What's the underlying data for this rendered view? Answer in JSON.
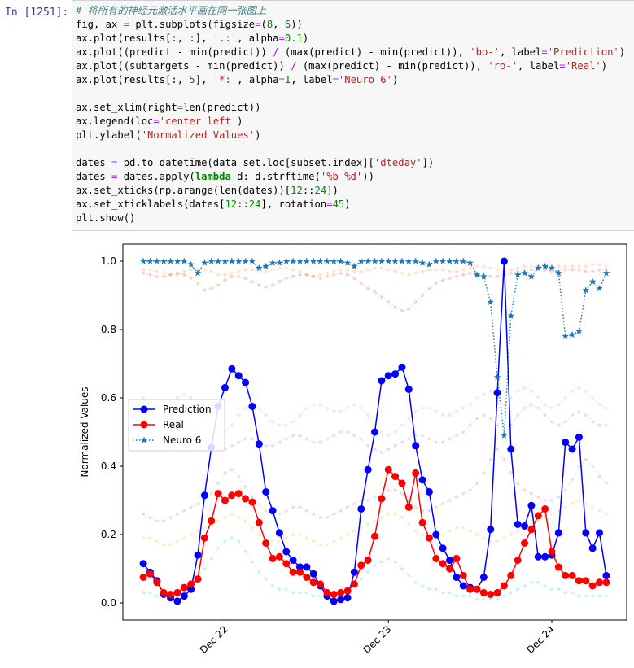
{
  "cell": {
    "prompt": "In  [1251]:",
    "code_lines": [
      "# 将所有的神经元激活水平画在同一张图上",
      "fig, ax = plt.subplots(figsize=(8, 6))",
      "ax.plot(results[:, :], '.:', alpha=0.1)",
      "ax.plot((predict - min(predict)) / (max(predict) - min(predict)), 'bo-', label='Prediction')",
      "ax.plot((subtargets - min(predict)) / (max(predict) - min(predict)), 'ro-', label='Real')",
      "ax.plot(results[:, 5], '*:', alpha=1, label='Neuro 6')",
      "",
      "ax.set_xlim(right=len(predict))",
      "ax.legend(loc='center left')",
      "plt.ylabel('Normalized Values')",
      "",
      "dates = pd.to_datetime(data_set.loc[subset.index]['dteday'])",
      "dates = dates.apply(lambda d: d.strftime('%b %d'))",
      "ax.set_xticks(np.arange(len(dates))[12::24])",
      "ax.set_xticklabels(dates[12::24], rotation=45)",
      "plt.show()"
    ]
  },
  "chart_data": {
    "type": "line",
    "xlabel": "",
    "ylabel": "Normalized Values",
    "xlim": [
      -3,
      71
    ],
    "ylim": [
      -0.05,
      1.05
    ],
    "yticks": [
      0.0,
      0.2,
      0.4,
      0.6,
      0.8,
      1.0
    ],
    "ytick_labels": [
      "0.0",
      "0.2",
      "0.4",
      "0.6",
      "0.8",
      "1.0"
    ],
    "xticks": [
      12,
      36,
      60
    ],
    "xtick_labels": [
      "Dec 22",
      "Dec 23",
      "Dec 24"
    ],
    "legend": {
      "placement": "center-left"
    },
    "colors": {
      "prediction": "#0000ff",
      "real": "#ff0000",
      "neuro6": "#1f77b4"
    },
    "series": [
      {
        "name": "Prediction",
        "style": "bo-",
        "values": [
          0.115,
          0.09,
          0.065,
          0.025,
          0.015,
          0.005,
          0.02,
          0.04,
          0.14,
          0.315,
          0.455,
          0.575,
          0.63,
          0.685,
          0.665,
          0.645,
          0.575,
          0.465,
          0.325,
          0.27,
          0.205,
          0.15,
          0.125,
          0.105,
          0.105,
          0.085,
          0.05,
          0.02,
          0.005,
          0.01,
          0.015,
          0.09,
          0.275,
          0.39,
          0.5,
          0.65,
          0.665,
          0.67,
          0.69,
          0.625,
          0.46,
          0.36,
          0.325,
          0.2,
          0.16,
          0.125,
          0.075,
          0.05,
          0.045,
          0.04,
          0.075,
          0.215,
          0.615,
          1.0,
          0.45,
          0.23,
          0.225,
          0.285,
          0.135,
          0.135,
          0.14,
          0.205,
          0.47,
          0.45,
          0.485,
          0.205,
          0.16,
          0.205,
          0.08
        ]
      },
      {
        "name": "Real",
        "style": "ro-",
        "values": [
          0.075,
          0.085,
          0.06,
          0.03,
          0.025,
          0.03,
          0.045,
          0.055,
          0.07,
          0.19,
          0.24,
          0.32,
          0.3,
          0.315,
          0.32,
          0.305,
          0.295,
          0.235,
          0.175,
          0.13,
          0.135,
          0.115,
          0.09,
          0.09,
          0.075,
          0.06,
          0.055,
          0.03,
          0.025,
          0.03,
          0.035,
          0.055,
          0.11,
          0.125,
          0.195,
          0.305,
          0.39,
          0.37,
          0.35,
          0.28,
          0.38,
          0.235,
          0.19,
          0.13,
          0.115,
          0.1,
          0.13,
          0.08,
          0.04,
          0.04,
          0.03,
          0.025,
          0.03,
          0.05,
          0.08,
          0.125,
          0.175,
          0.215,
          0.255,
          0.275,
          0.15,
          0.105,
          0.08,
          0.08,
          0.065,
          0.065,
          0.05,
          0.06,
          0.06
        ]
      },
      {
        "name": "Neuro 6",
        "style": "*:",
        "values": [
          1.0,
          1.0,
          1.0,
          1.0,
          1.0,
          1.0,
          1.0,
          0.99,
          0.965,
          0.995,
          1.0,
          1.0,
          1.0,
          1.0,
          1.0,
          1.0,
          1.0,
          0.98,
          0.985,
          0.995,
          0.995,
          1.0,
          1.0,
          1.0,
          1.0,
          1.0,
          1.0,
          1.0,
          1.0,
          1.0,
          0.995,
          0.985,
          1.0,
          1.0,
          1.0,
          1.0,
          1.0,
          1.0,
          1.0,
          1.0,
          1.0,
          0.995,
          0.99,
          1.0,
          1.0,
          1.0,
          1.0,
          1.0,
          0.995,
          0.96,
          0.955,
          0.88,
          0.66,
          0.49,
          0.84,
          0.96,
          0.965,
          0.955,
          0.98,
          0.985,
          0.98,
          0.965,
          0.78,
          0.785,
          0.795,
          0.915,
          0.94,
          0.92,
          0.965
        ]
      }
    ],
    "faint_series": [
      [
        0.975,
        0.975,
        0.97,
        0.965,
        0.96,
        0.96,
        0.97,
        0.975,
        0.975,
        0.975,
        0.97,
        0.96,
        0.96,
        0.965,
        0.97,
        0.975,
        0.975,
        0.97,
        0.97,
        0.975,
        0.98,
        0.98,
        0.975,
        0.97,
        0.96,
        0.955,
        0.96,
        0.965,
        0.97,
        0.975,
        0.975,
        0.97,
        0.97,
        0.975,
        0.98,
        0.98,
        0.975,
        0.97,
        0.965,
        0.96,
        0.965,
        0.97,
        0.975,
        0.975,
        0.975,
        0.97,
        0.97,
        0.975,
        0.98,
        0.985,
        0.985,
        0.98,
        0.975,
        0.97,
        0.975,
        0.98,
        0.985,
        0.985,
        0.985,
        0.98,
        0.98,
        0.985,
        0.985,
        0.985,
        0.985,
        0.985,
        0.99,
        0.99,
        0.985
      ],
      [
        0.965,
        0.96,
        0.955,
        0.955,
        0.96,
        0.965,
        0.96,
        0.95,
        0.935,
        0.915,
        0.92,
        0.93,
        0.945,
        0.955,
        0.955,
        0.95,
        0.94,
        0.93,
        0.925,
        0.93,
        0.94,
        0.95,
        0.955,
        0.96,
        0.96,
        0.955,
        0.95,
        0.955,
        0.96,
        0.965,
        0.96,
        0.95,
        0.935,
        0.92,
        0.91,
        0.895,
        0.88,
        0.865,
        0.855,
        0.86,
        0.88,
        0.9,
        0.92,
        0.935,
        0.945,
        0.95,
        0.955,
        0.96,
        0.965,
        0.965,
        0.96,
        0.955,
        0.955,
        0.96,
        0.965,
        0.97,
        0.97,
        0.975,
        0.975,
        0.975,
        0.97,
        0.97,
        0.975,
        0.975,
        0.975,
        0.97,
        0.97,
        0.975,
        0.975
      ],
      [
        0.6,
        0.59,
        0.58,
        0.58,
        0.59,
        0.6,
        0.61,
        0.6,
        0.58,
        0.55,
        0.52,
        0.5,
        0.5,
        0.52,
        0.55,
        0.57,
        0.58,
        0.57,
        0.55,
        0.53,
        0.52,
        0.52,
        0.53,
        0.55,
        0.57,
        0.58,
        0.58,
        0.57,
        0.56,
        0.56,
        0.57,
        0.58,
        0.57,
        0.55,
        0.52,
        0.5,
        0.49,
        0.5,
        0.52,
        0.54,
        0.56,
        0.57,
        0.57,
        0.56,
        0.55,
        0.55,
        0.56,
        0.57,
        0.58,
        0.6,
        0.61,
        0.62,
        0.6,
        0.58,
        0.6,
        0.62,
        0.63,
        0.62,
        0.6,
        0.58,
        0.57,
        0.58,
        0.6,
        0.62,
        0.63,
        0.62,
        0.6,
        0.58,
        0.57
      ],
      [
        0.5,
        0.5,
        0.49,
        0.48,
        0.48,
        0.49,
        0.5,
        0.51,
        0.5,
        0.48,
        0.46,
        0.45,
        0.45,
        0.46,
        0.47,
        0.48,
        0.48,
        0.47,
        0.46,
        0.46,
        0.47,
        0.48,
        0.49,
        0.49,
        0.48,
        0.47,
        0.47,
        0.48,
        0.49,
        0.5,
        0.5,
        0.49,
        0.48,
        0.46,
        0.45,
        0.44,
        0.45,
        0.46,
        0.47,
        0.48,
        0.49,
        0.49,
        0.48,
        0.47,
        0.47,
        0.48,
        0.49,
        0.5,
        0.52,
        0.54,
        0.55,
        0.54,
        0.52,
        0.5,
        0.52,
        0.55,
        0.57,
        0.58,
        0.57,
        0.55,
        0.53,
        0.52,
        0.53,
        0.55,
        0.56,
        0.55,
        0.53,
        0.52,
        0.52
      ],
      [
        0.26,
        0.25,
        0.24,
        0.24,
        0.25,
        0.26,
        0.27,
        0.28,
        0.29,
        0.3,
        0.32,
        0.35,
        0.38,
        0.39,
        0.37,
        0.34,
        0.31,
        0.29,
        0.27,
        0.26,
        0.26,
        0.27,
        0.28,
        0.28,
        0.27,
        0.26,
        0.25,
        0.25,
        0.26,
        0.27,
        0.28,
        0.29,
        0.3,
        0.3,
        0.31,
        0.32,
        0.33,
        0.33,
        0.32,
        0.3,
        0.28,
        0.27,
        0.27,
        0.28,
        0.29,
        0.3,
        0.31,
        0.32,
        0.33,
        0.35,
        0.38,
        0.42,
        0.45,
        0.42,
        0.38,
        0.35,
        0.33,
        0.32,
        0.31,
        0.3,
        0.3,
        0.31,
        0.33,
        0.36,
        0.4,
        0.42,
        0.4,
        0.37,
        0.35
      ],
      [
        0.19,
        0.19,
        0.18,
        0.17,
        0.17,
        0.18,
        0.19,
        0.2,
        0.21,
        0.22,
        0.23,
        0.24,
        0.25,
        0.26,
        0.25,
        0.24,
        0.22,
        0.2,
        0.19,
        0.18,
        0.18,
        0.19,
        0.2,
        0.2,
        0.19,
        0.18,
        0.17,
        0.17,
        0.18,
        0.19,
        0.2,
        0.21,
        0.22,
        0.23,
        0.24,
        0.25,
        0.26,
        0.26,
        0.25,
        0.23,
        0.21,
        0.2,
        0.19,
        0.19,
        0.2,
        0.21,
        0.22,
        0.22,
        0.21,
        0.2,
        0.19,
        0.18,
        0.18,
        0.19,
        0.2,
        0.21,
        0.22,
        0.23,
        0.24,
        0.25,
        0.26,
        0.27,
        0.28,
        0.29,
        0.3,
        0.29,
        0.28,
        0.27,
        0.26
      ],
      [
        0.03,
        0.03,
        0.02,
        0.02,
        0.02,
        0.03,
        0.04,
        0.05,
        0.07,
        0.1,
        0.13,
        0.16,
        0.18,
        0.19,
        0.18,
        0.15,
        0.12,
        0.09,
        0.07,
        0.05,
        0.04,
        0.04,
        0.03,
        0.03,
        0.03,
        0.02,
        0.02,
        0.02,
        0.02,
        0.03,
        0.04,
        0.05,
        0.07,
        0.09,
        0.11,
        0.12,
        0.13,
        0.12,
        0.1,
        0.08,
        0.06,
        0.05,
        0.04,
        0.04,
        0.03,
        0.03,
        0.02,
        0.02,
        0.02,
        0.01,
        0.01,
        0.01,
        0.01,
        0.02,
        0.03,
        0.04,
        0.05,
        0.06,
        0.06,
        0.05,
        0.04,
        0.04,
        0.03,
        0.03,
        0.02,
        0.02,
        0.02,
        0.02,
        0.02
      ]
    ],
    "faint_colors": [
      "#ff7f0e",
      "#d62728",
      "#e377c2",
      "#9467bd",
      "#7f7f7f",
      "#bcbd22",
      "#17becf"
    ]
  }
}
